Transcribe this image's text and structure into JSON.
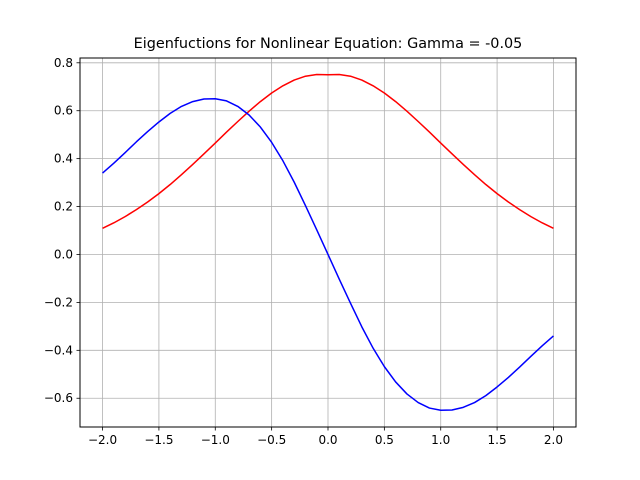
{
  "chart_data": {
    "type": "line",
    "title": "Eigenfuctions for Nonlinear Equation: Gamma = -0.05",
    "xlabel": "",
    "ylabel": "",
    "xlim": [
      -2.2,
      2.2
    ],
    "ylim": [
      -0.72,
      0.82
    ],
    "grid": true,
    "legend": "none",
    "xticks": [
      -2.0,
      -1.5,
      -1.0,
      -0.5,
      0.0,
      0.5,
      1.0,
      1.5,
      2.0
    ],
    "xtick_labels": [
      "−2.0",
      "−1.5",
      "−1.0",
      "−0.5",
      "0.0",
      "0.5",
      "1.0",
      "1.5",
      "2.0"
    ],
    "yticks": [
      -0.6,
      -0.4,
      -0.2,
      0.0,
      0.2,
      0.4,
      0.6,
      0.8
    ],
    "ytick_labels": [
      "−0.6",
      "−0.4",
      "−0.2",
      "0.0",
      "0.2",
      "0.4",
      "0.6",
      "0.8"
    ],
    "series": [
      {
        "color": "#ff0000",
        "x": [
          -2.0,
          -1.9,
          -1.8,
          -1.7,
          -1.6,
          -1.5,
          -1.4,
          -1.3,
          -1.2,
          -1.1,
          -1.0,
          -0.9,
          -0.8,
          -0.7,
          -0.6,
          -0.5,
          -0.4,
          -0.3,
          -0.2,
          -0.1,
          0.0,
          0.1,
          0.2,
          0.3,
          0.4,
          0.5,
          0.6,
          0.7,
          0.8,
          0.9,
          1.0,
          1.1,
          1.2,
          1.3,
          1.4,
          1.5,
          1.6,
          1.7,
          1.8,
          1.9,
          2.0
        ],
        "y": [
          0.109,
          0.132,
          0.158,
          0.187,
          0.219,
          0.254,
          0.292,
          0.333,
          0.376,
          0.42,
          0.465,
          0.511,
          0.555,
          0.598,
          0.638,
          0.674,
          0.704,
          0.728,
          0.744,
          0.751,
          0.75,
          0.751,
          0.744,
          0.728,
          0.704,
          0.674,
          0.638,
          0.598,
          0.555,
          0.511,
          0.465,
          0.42,
          0.376,
          0.333,
          0.292,
          0.254,
          0.219,
          0.187,
          0.158,
          0.132,
          0.109
        ]
      },
      {
        "color": "#0000ff",
        "x": [
          -2.0,
          -1.9,
          -1.8,
          -1.7,
          -1.6,
          -1.5,
          -1.4,
          -1.3,
          -1.2,
          -1.1,
          -1.0,
          -0.9,
          -0.8,
          -0.7,
          -0.6,
          -0.5,
          -0.4,
          -0.3,
          -0.2,
          -0.1,
          0.0,
          0.1,
          0.2,
          0.3,
          0.4,
          0.5,
          0.6,
          0.7,
          0.8,
          0.9,
          1.0,
          1.1,
          1.2,
          1.3,
          1.4,
          1.5,
          1.6,
          1.7,
          1.8,
          1.9,
          2.0
        ],
        "y": [
          0.34,
          0.381,
          0.425,
          0.47,
          0.513,
          0.553,
          0.589,
          0.618,
          0.638,
          0.649,
          0.65,
          0.641,
          0.618,
          0.582,
          0.532,
          0.468,
          0.391,
          0.302,
          0.204,
          0.103,
          0.0,
          -0.103,
          -0.204,
          -0.302,
          -0.391,
          -0.468,
          -0.532,
          -0.582,
          -0.618,
          -0.641,
          -0.65,
          -0.649,
          -0.638,
          -0.618,
          -0.589,
          -0.553,
          -0.513,
          -0.47,
          -0.425,
          -0.381,
          -0.34
        ]
      }
    ]
  }
}
